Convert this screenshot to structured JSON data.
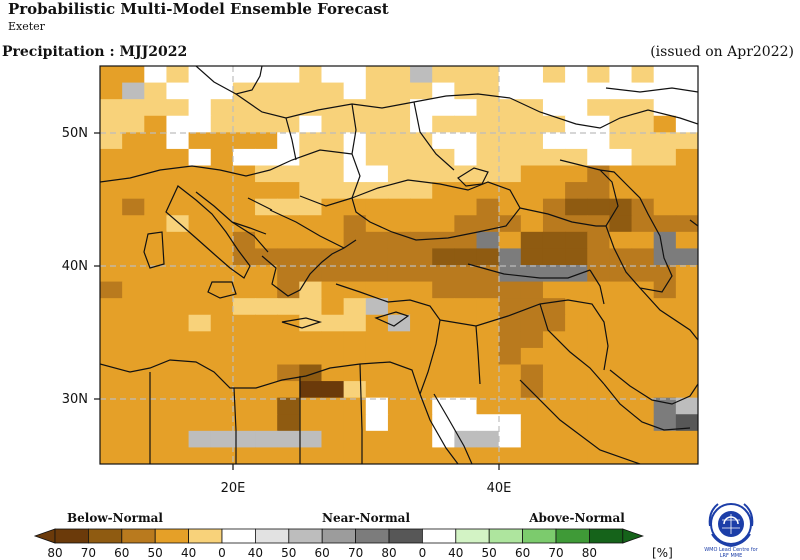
{
  "header": {
    "title": "Probabilistic Multi-Model Ensemble Forecast",
    "centre": "Exeter",
    "variable_period": "Precipitation : MJJ2022",
    "issued": "(issued on Apr2022)"
  },
  "axes": {
    "lat_labels": [
      "50N",
      "40N",
      "30N"
    ],
    "lon_labels": [
      "20E",
      "40E"
    ]
  },
  "legend": {
    "categories": [
      "Below-Normal",
      "Near-Normal",
      "Above-Normal"
    ],
    "ticks": [
      "80",
      "70",
      "60",
      "50",
      "40",
      "0",
      "40",
      "50",
      "60",
      "70",
      "80",
      "0",
      "40",
      "50",
      "60",
      "70",
      "80"
    ],
    "unit": "[%]",
    "colors": {
      "below": [
        "#6b3a0a",
        "#8f5b11",
        "#b97a1e",
        "#e5a028",
        "#f8d27a"
      ],
      "neutral": "#ffffff",
      "near": [
        "#e2e2e2",
        "#bdbdbd",
        "#9c9c9c",
        "#7c7c7c",
        "#575757"
      ],
      "above": [
        "#d3f3c5",
        "#aee59e",
        "#7ccb6d",
        "#3f9a37",
        "#15631a"
      ]
    }
  },
  "logo": {
    "icon": "wmo-emblem-icon",
    "text_line1": "WMO Lead Centre for",
    "text_line2": "LRF MME"
  }
}
